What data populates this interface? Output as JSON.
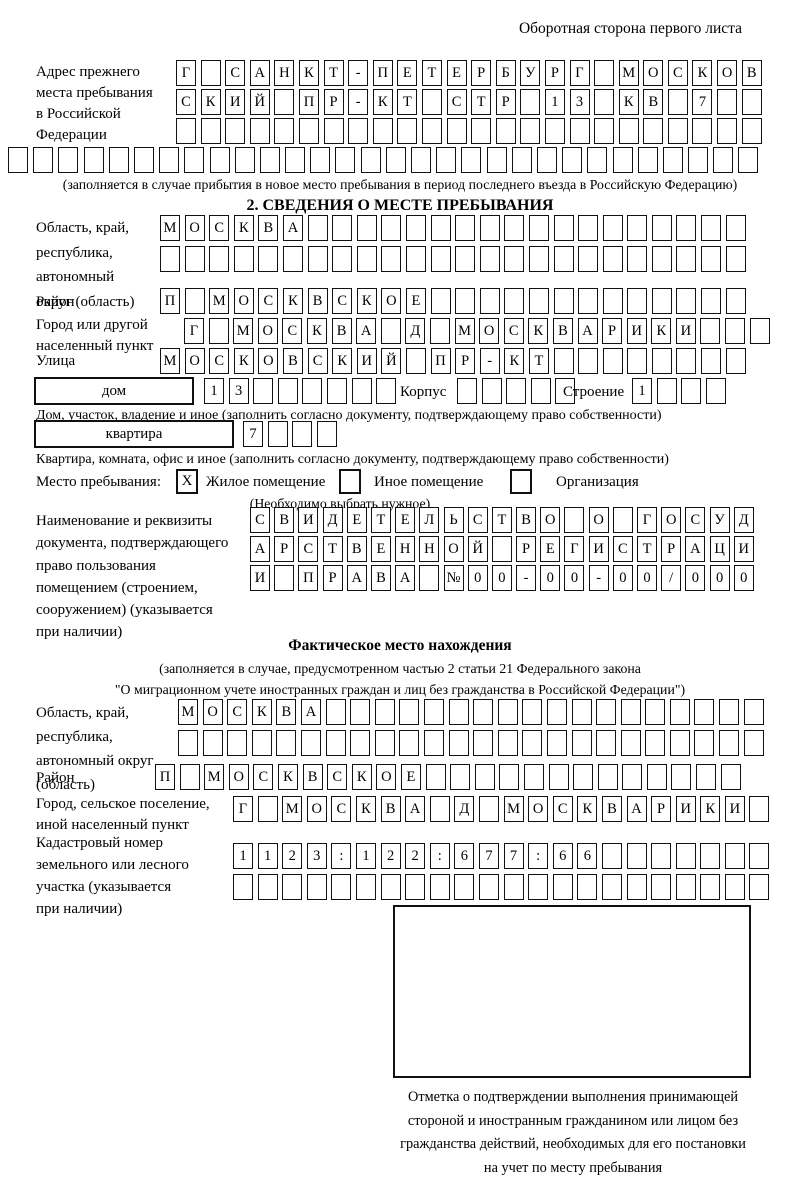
{
  "colors": {
    "ink": "#000000",
    "paper": "#ffffff"
  },
  "header": {
    "note": "Оборотная сторона первого листа"
  },
  "prev_address": {
    "label_lines": [
      "Адрес прежнего",
      "места пребывания",
      "в Российской",
      "Федерации"
    ],
    "row1": [
      "Г",
      "",
      "С",
      "А",
      "Н",
      "К",
      "Т",
      "-",
      "П",
      "Е",
      "Т",
      "Е",
      "Р",
      "Б",
      "У",
      "Р",
      "Г",
      "",
      "М",
      "О",
      "С",
      "К",
      "О",
      "В"
    ],
    "row2": [
      "С",
      "К",
      "И",
      "Й",
      "",
      "П",
      "Р",
      "-",
      "К",
      "Т",
      "",
      "С",
      "Т",
      "Р",
      "",
      "1",
      "3",
      "",
      "К",
      "В",
      "",
      "7",
      "",
      ""
    ],
    "row3": [
      "",
      "",
      "",
      "",
      "",
      "",
      "",
      "",
      "",
      "",
      "",
      "",
      "",
      "",
      "",
      "",
      "",
      "",
      "",
      "",
      "",
      "",
      "",
      ""
    ],
    "row4": [
      "",
      "",
      "",
      "",
      "",
      "",
      "",
      "",
      "",
      "",
      "",
      "",
      "",
      "",
      "",
      "",
      "",
      "",
      "",
      "",
      "",
      "",
      "",
      "",
      "",
      "",
      "",
      "",
      "",
      ""
    ],
    "caption": "(заполняется в случае прибытия в новое место пребывания в период последнего въезда в Российскую Федерацию)"
  },
  "section2": {
    "title": "2. СВЕДЕНИЯ О МЕСТЕ ПРЕБЫВАНИЯ",
    "region": {
      "label_lines": [
        "Область, край,",
        "республика,",
        "автономный",
        "округ (область)"
      ],
      "row1": [
        "М",
        "О",
        "С",
        "К",
        "В",
        "А",
        "",
        "",
        "",
        "",
        "",
        "",
        "",
        "",
        "",
        "",
        "",
        "",
        "",
        "",
        "",
        "",
        "",
        ""
      ],
      "row2": [
        "",
        "",
        "",
        "",
        "",
        "",
        "",
        "",
        "",
        "",
        "",
        "",
        "",
        "",
        "",
        "",
        "",
        "",
        "",
        "",
        "",
        "",
        "",
        ""
      ]
    },
    "district": {
      "label": "Район",
      "row": [
        "П",
        "",
        "М",
        "О",
        "С",
        "К",
        "В",
        "С",
        "К",
        "О",
        "Е",
        "",
        "",
        "",
        "",
        "",
        "",
        "",
        "",
        "",
        "",
        "",
        "",
        ""
      ]
    },
    "city": {
      "label_lines": [
        "Город или другой",
        "населенный пункт"
      ],
      "row": [
        "Г",
        "",
        "М",
        "О",
        "С",
        "К",
        "В",
        "А",
        "",
        "Д",
        "",
        "М",
        "О",
        "С",
        "К",
        "В",
        "А",
        "Р",
        "И",
        "К",
        "И",
        "",
        "",
        ""
      ]
    },
    "street": {
      "label": "Улица",
      "row": [
        "М",
        "О",
        "С",
        "К",
        "О",
        "В",
        "С",
        "К",
        "И",
        "Й",
        "",
        "П",
        "Р",
        "-",
        "К",
        "Т",
        "",
        "",
        "",
        "",
        "",
        "",
        "",
        ""
      ]
    },
    "house": {
      "box_label": "дом",
      "cells": [
        "1",
        "3",
        "",
        "",
        "",
        "",
        "",
        ""
      ],
      "korpus_label": "Корпус",
      "korpus_cells": [
        "",
        "",
        "",
        "",
        ""
      ],
      "stroenie_label": "Строение",
      "stroenie_cells": [
        "1",
        "",
        "",
        ""
      ],
      "caption": "Дом, участок, владение и иное (заполнить согласно документу, подтверждающему право собственности)"
    },
    "apartment": {
      "box_label": "квартира",
      "cells": [
        "7",
        "",
        "",
        ""
      ],
      "caption": "Квартира, комната, офис и иное (заполнить согласно документу, подтверждающему право собственности)"
    },
    "stay_type": {
      "label": "Место пребывания:",
      "options": [
        {
          "mark": "X",
          "label": "Жилое помещение"
        },
        {
          "mark": "",
          "label": "Иное помещение"
        },
        {
          "mark": "",
          "label": "Организация"
        }
      ],
      "note": "(Необходимо выбрать нужное)"
    },
    "document": {
      "label_lines": [
        "Наименование и реквизиты",
        "документа, подтверждающего",
        "право пользования",
        "помещением (строением,",
        "сооружением) (указывается",
        "при наличии)"
      ],
      "row1": [
        "С",
        "В",
        "И",
        "Д",
        "Е",
        "Т",
        "Е",
        "Л",
        "Ь",
        "С",
        "Т",
        "В",
        "О",
        "",
        "О",
        "",
        "Г",
        "О",
        "С",
        "У",
        "Д"
      ],
      "row2": [
        "А",
        "Р",
        "С",
        "Т",
        "В",
        "Е",
        "Н",
        "Н",
        "О",
        "Й",
        "",
        "Р",
        "Е",
        "Г",
        "И",
        "С",
        "Т",
        "Р",
        "А",
        "Ц",
        "И"
      ],
      "row3": [
        "И",
        "",
        "П",
        "Р",
        "А",
        "В",
        "А",
        "",
        "№",
        "0",
        "0",
        "-",
        "0",
        "0",
        "-",
        "0",
        "0",
        "/",
        "0",
        "0",
        "0"
      ]
    }
  },
  "actual_location": {
    "title": "Фактическое место нахождения",
    "note1": "(заполняется в случае, предусмотренном частью 2 статьи 21 Федерального закона",
    "note2": "\"О миграционном учете иностранных граждан и лиц без гражданства в Российской Федерации\")",
    "region": {
      "label_lines": [
        "Область, край,",
        "республика,",
        "автономный округ",
        "(область)"
      ],
      "row1": [
        "М",
        "О",
        "С",
        "К",
        "В",
        "А",
        "",
        "",
        "",
        "",
        "",
        "",
        "",
        "",
        "",
        "",
        "",
        "",
        "",
        "",
        "",
        "",
        "",
        ""
      ],
      "row2": [
        "",
        "",
        "",
        "",
        "",
        "",
        "",
        "",
        "",
        "",
        "",
        "",
        "",
        "",
        "",
        "",
        "",
        "",
        "",
        "",
        "",
        "",
        "",
        ""
      ]
    },
    "district": {
      "label": "Район",
      "row": [
        "П",
        "",
        "М",
        "О",
        "С",
        "К",
        "В",
        "С",
        "К",
        "О",
        "Е",
        "",
        "",
        "",
        "",
        "",
        "",
        "",
        "",
        "",
        "",
        "",
        "",
        ""
      ]
    },
    "city": {
      "label_lines": [
        "Город, сельское поселение,",
        "иной населенный пункт"
      ],
      "row": [
        "Г",
        "",
        "М",
        "О",
        "С",
        "К",
        "В",
        "А",
        "",
        "Д",
        "",
        "М",
        "О",
        "С",
        "К",
        "В",
        "А",
        "Р",
        "И",
        "К",
        "И",
        ""
      ]
    },
    "cadastral": {
      "label_lines": [
        "Кадастровый номер",
        "земельного или лесного",
        "участка (указывается",
        "при наличии)"
      ],
      "row1": [
        "1",
        "1",
        "2",
        "3",
        ":",
        "1",
        "2",
        "2",
        ":",
        "6",
        "7",
        "7",
        ":",
        "6",
        "6",
        "",
        "",
        "",
        "",
        "",
        "",
        ""
      ],
      "row2": [
        "",
        "",
        "",
        "",
        "",
        "",
        "",
        "",
        "",
        "",
        "",
        "",
        "",
        "",
        "",
        "",
        "",
        "",
        "",
        "",
        "",
        ""
      ]
    }
  },
  "stamp": {
    "caption_lines": [
      "Отметка о подтверждении выполнения принимающей",
      "стороной и иностранным гражданином или лицом без",
      "гражданства действий, необходимых для его постановки",
      "на учет по месту пребывания"
    ]
  }
}
